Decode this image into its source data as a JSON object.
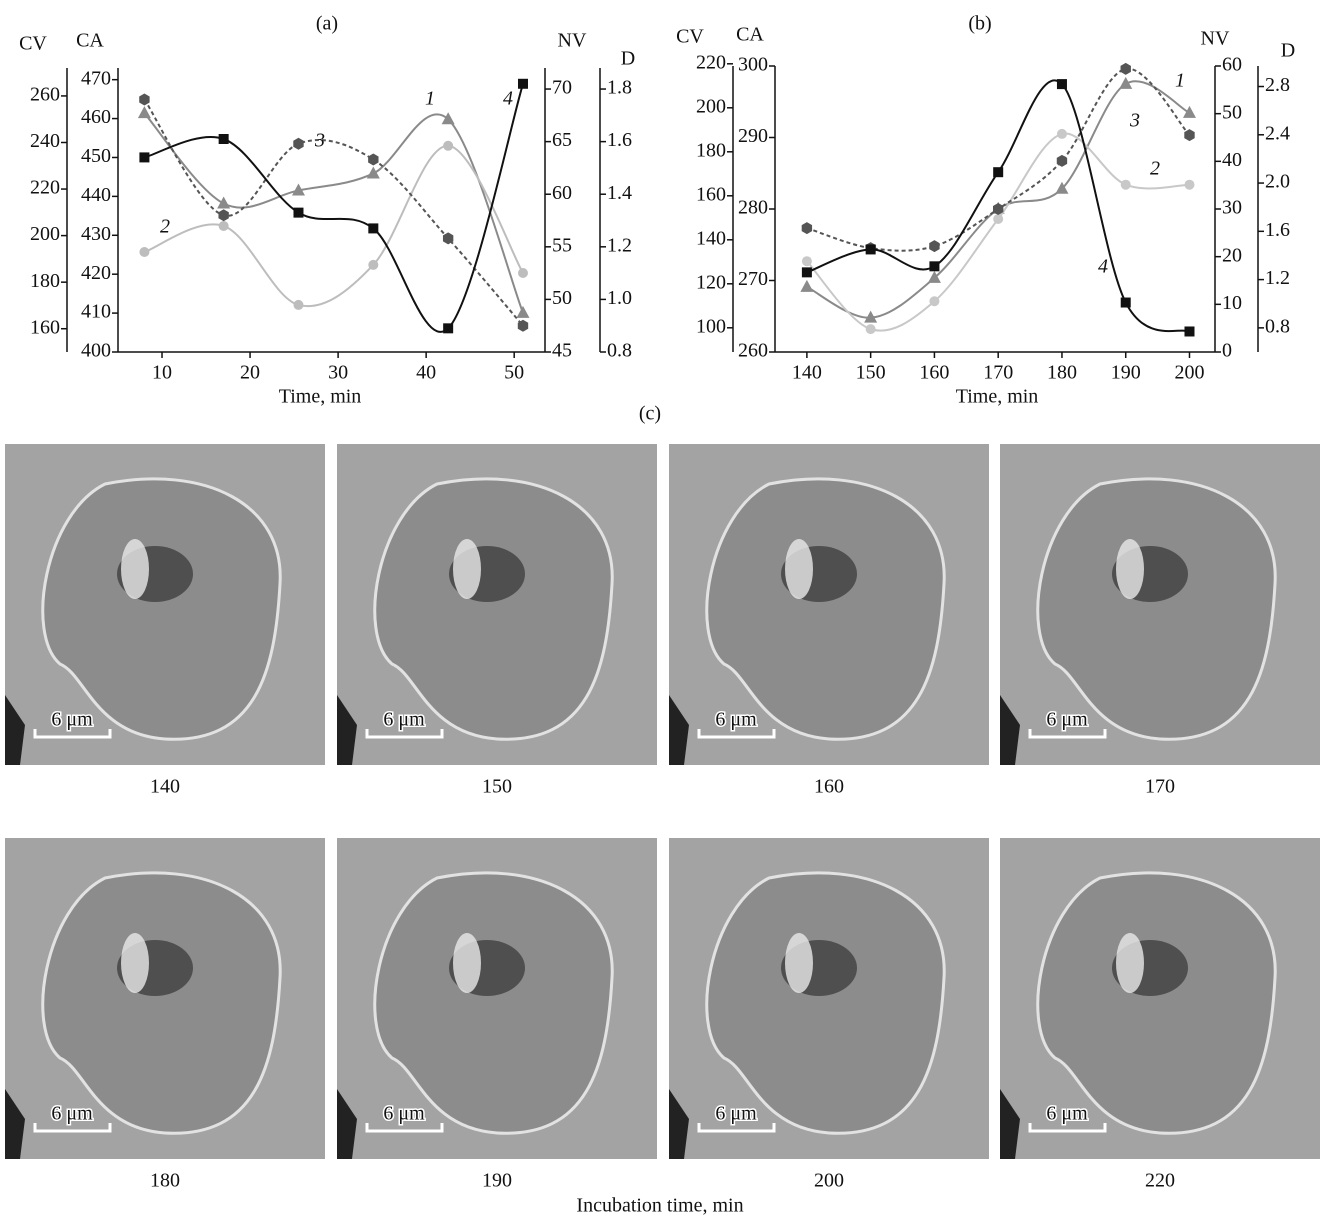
{
  "chart_data": [
    {
      "type": "line",
      "title": "(a)",
      "xlabel": "Time, min",
      "xlim": [
        5,
        53.5
      ],
      "xticks": [
        10,
        20,
        30,
        40,
        50
      ],
      "x": [
        8,
        17,
        25.5,
        34,
        42.5,
        51
      ],
      "axes": [
        {
          "label": "CV",
          "ylim": [
            150,
            272
          ],
          "yticks": [
            160,
            180,
            200,
            220,
            240,
            260
          ]
        },
        {
          "label": "CA",
          "ylim": [
            400,
            473
          ],
          "yticks": [
            400,
            410,
            420,
            430,
            440,
            450,
            460,
            470
          ]
        },
        {
          "label": "NV",
          "ylim": [
            45,
            72
          ],
          "yticks": [
            45,
            50,
            55,
            60,
            65,
            70
          ]
        },
        {
          "label": "D",
          "ylim": [
            0.8,
            1.88
          ],
          "yticks": [
            0.8,
            {
              "value": 1,
              "label": "1.0"
            },
            1.2,
            1.4,
            1.6,
            1.8
          ]
        }
      ],
      "series": [
        {
          "name": "1",
          "axis": "CV",
          "color": "#8a8a8a",
          "marker": "triangle",
          "dashed": false,
          "values": [
            252.6,
            213.8,
            219.4,
            226.7,
            250,
            166.8
          ]
        },
        {
          "name": "2",
          "axis": "CA",
          "color": "#bdbdbd",
          "marker": "circle",
          "dashed": false,
          "values": [
            425.7,
            432.4,
            412.1,
            422.4,
            453,
            420.3
          ]
        },
        {
          "name": "3",
          "axis": "NV",
          "color": "#555555",
          "marker": "hexagon",
          "dashed": true,
          "values": [
            69,
            58,
            64.8,
            63.3,
            55.8,
            47.5
          ]
        },
        {
          "name": "4",
          "axis": "D",
          "color": "#111111",
          "marker": "square",
          "dashed": false,
          "values": [
            1.54,
            1.61,
            1.33,
            1.27,
            0.89,
            1.82
          ]
        }
      ]
    },
    {
      "type": "line",
      "title": "(b)",
      "xlabel": "Time, min",
      "xlim": [
        135,
        204
      ],
      "xticks": [
        140,
        150,
        160,
        170,
        180,
        190,
        200
      ],
      "x": [
        140,
        150,
        160,
        170,
        180,
        190,
        200
      ],
      "axes": [
        {
          "label": "CV",
          "ylim": [
            89,
            219
          ],
          "yticks": [
            100,
            120,
            140,
            160,
            180,
            200,
            220
          ]
        },
        {
          "label": "CA",
          "ylim": [
            260,
            300
          ],
          "yticks": [
            260,
            270,
            280,
            290,
            300
          ]
        },
        {
          "label": "NV",
          "ylim": [
            0,
            60
          ],
          "yticks": [
            0,
            10,
            20,
            30,
            40,
            50,
            60
          ]
        },
        {
          "label": "D",
          "ylim": [
            0.6,
            2.97
          ],
          "yticks": [
            0.8,
            1.2,
            1.6,
            {
              "value": 2,
              "label": "2.0"
            },
            2.4,
            2.8
          ]
        }
      ],
      "series": [
        {
          "name": "1",
          "axis": "CV",
          "color": "#8a8a8a",
          "marker": "triangle",
          "dashed": false,
          "values": [
            118.6,
            104.6,
            122.7,
            154.1,
            163.2,
            210.9,
            197.7
          ]
        },
        {
          "name": "2",
          "axis": "CA",
          "color": "#c8c8c8",
          "marker": "circle",
          "dashed": false,
          "values": [
            272.7,
            263.2,
            267.1,
            278.6,
            290.5,
            283.4,
            283.4
          ]
        },
        {
          "name": "3",
          "axis": "NV",
          "color": "#555555",
          "marker": "hexagon",
          "dashed": true,
          "values": [
            26,
            21.8,
            22.2,
            30,
            40.1,
            59.4,
            45.5
          ]
        },
        {
          "name": "4",
          "axis": "D",
          "color": "#111111",
          "marker": "square",
          "dashed": false,
          "values": [
            1.26,
            1.45,
            1.31,
            2.09,
            2.82,
            1.01,
            0.77
          ]
        }
      ]
    }
  ],
  "panel_label": "(c)",
  "xlabel": "Incubation time, min",
  "panels": [
    {
      "time": "140",
      "scale_bar": "6 μm"
    },
    {
      "time": "150",
      "scale_bar": "6 μm"
    },
    {
      "time": "160",
      "scale_bar": "6 μm"
    },
    {
      "time": "170",
      "scale_bar": "6 μm"
    },
    {
      "time": "180",
      "scale_bar": "6 μm"
    },
    {
      "time": "190",
      "scale_bar": "6 μm"
    },
    {
      "time": "200",
      "scale_bar": "6 μm"
    },
    {
      "time": "220",
      "scale_bar": "6 μm"
    }
  ]
}
